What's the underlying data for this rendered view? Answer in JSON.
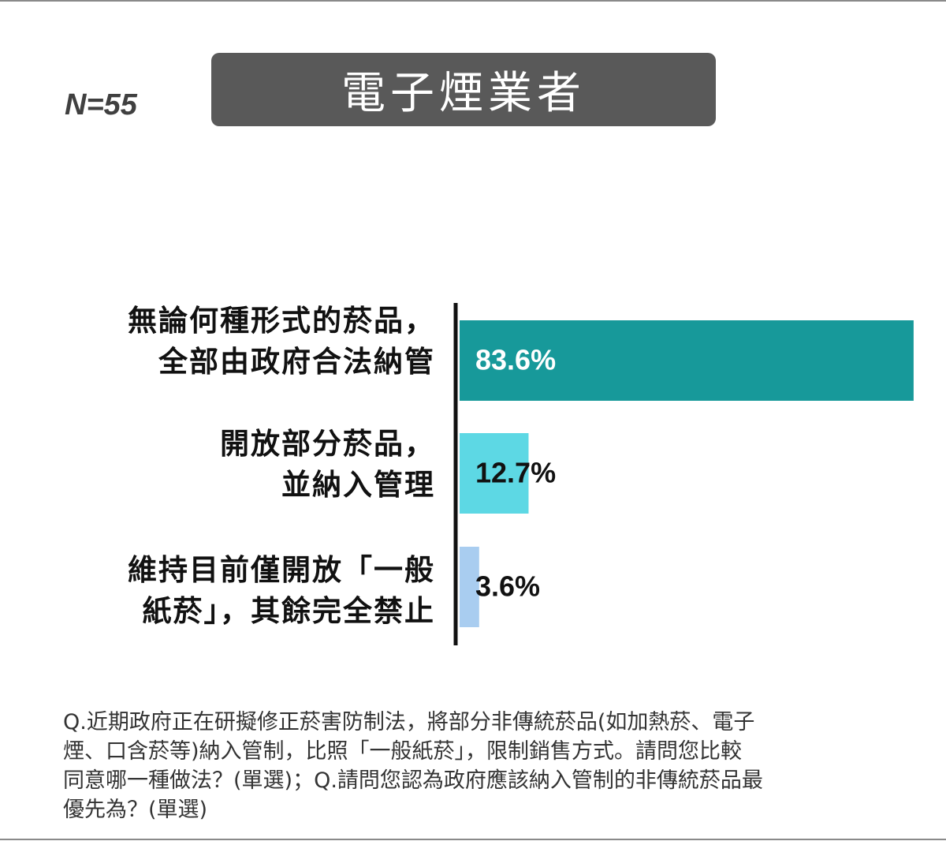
{
  "sample_size_label": "N=55",
  "title": "電子煙業者",
  "chart_data": {
    "type": "bar",
    "orientation": "horizontal",
    "title": "電子煙業者",
    "categories": [
      [
        "無論何種形式的菸品，",
        "全部由政府合法納管"
      ],
      [
        "開放部分菸品，",
        "並納入管理"
      ],
      [
        "維持目前僅開放「一般",
        "紙菸」，其餘完全禁止"
      ]
    ],
    "values": [
      83.6,
      12.7,
      3.6
    ],
    "value_labels": [
      "83.6%",
      "12.7%",
      "3.6%"
    ],
    "unit": "%",
    "xlim": [
      0,
      90
    ],
    "colors": [
      "#17999a",
      "#5dd8e4",
      "#a9cdf0"
    ],
    "label_colors": [
      "#ffffff",
      "#111111",
      "#111111"
    ],
    "grid": false,
    "legend": "none"
  },
  "footnote_lines": [
    "Q.近期政府正在研擬修正菸害防制法，將部分非傳統菸品(如加熱菸、電子",
    "煙、口含菸等)納入管制，比照「一般紙菸」，限制銷售方式。請問您比較",
    "同意哪一種做法？(單選)；Q.請問您認為政府應該納入管制的非傳統菸品最",
    "優先為？(單選)"
  ]
}
